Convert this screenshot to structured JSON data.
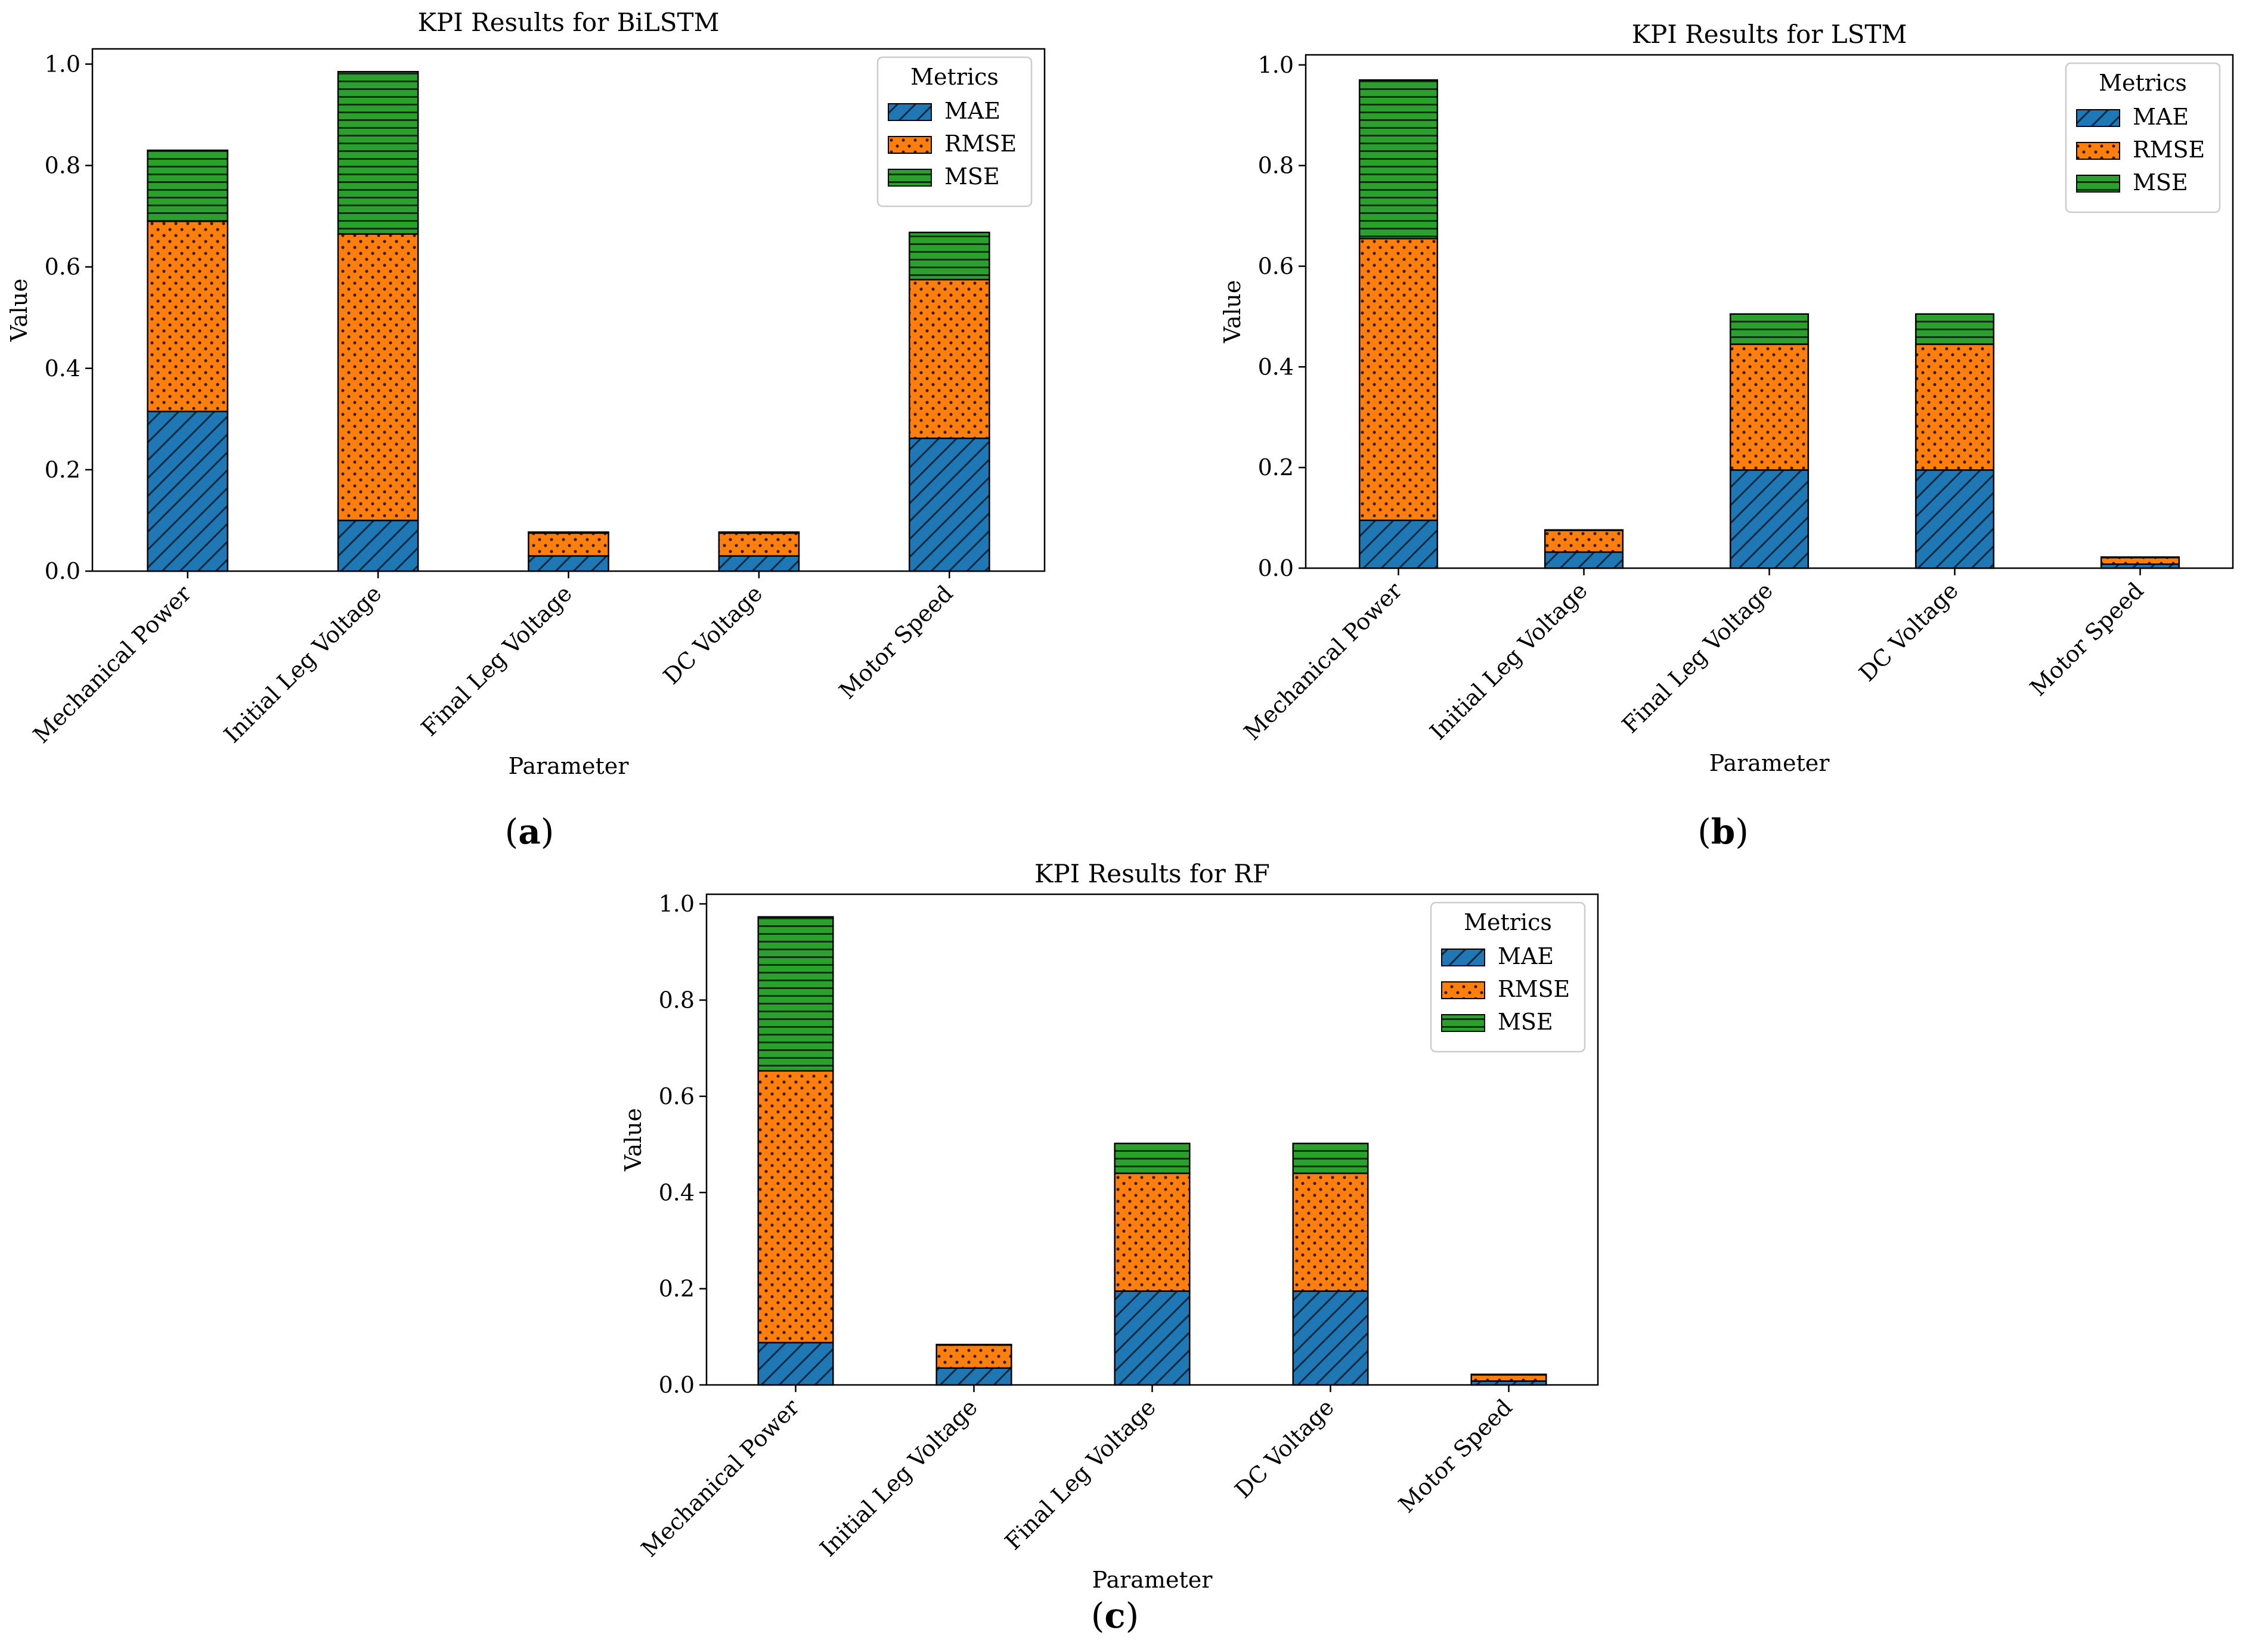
{
  "colors": {
    "MAE": "#1f77b4",
    "RMSE": "#ff7f0e",
    "MSE": "#2ca02c",
    "MAE_hatch": "#0d2a44",
    "RMSE_hatch": "#3a1c02",
    "MSE_hatch": "#0b3310",
    "axis": "#000000"
  },
  "chart_data": [
    {
      "type": "bar",
      "stacked": true,
      "panel_label": "(a)",
      "title": "KPI Results for BiLSTM",
      "xlabel": "Parameter",
      "ylabel": "Value",
      "ylim": [
        0,
        1.03
      ],
      "yticks": [
        0.0,
        0.2,
        0.4,
        0.6,
        0.8,
        1.0
      ],
      "ytick_labels": [
        "0.0",
        "0.2",
        "0.4",
        "0.6",
        "0.8",
        "1.0"
      ],
      "categories": [
        "Mechanical Power",
        "Initial Leg Voltage",
        "Final Leg Voltage",
        "DC Voltage",
        "Motor Speed"
      ],
      "legend": {
        "title": "Metrics",
        "entries": [
          "MAE",
          "RMSE",
          "MSE"
        ],
        "placement": "top-right"
      },
      "series": [
        {
          "name": "MAE",
          "values": [
            0.315,
            0.1,
            0.03,
            0.03,
            0.262
          ]
        },
        {
          "name": "RMSE",
          "values": [
            0.375,
            0.565,
            0.045,
            0.045,
            0.313
          ]
        },
        {
          "name": "MSE",
          "values": [
            0.14,
            0.32,
            0.002,
            0.002,
            0.093
          ]
        }
      ]
    },
    {
      "type": "bar",
      "stacked": true,
      "panel_label": "(b)",
      "title": "KPI Results for LSTM",
      "xlabel": "Parameter",
      "ylabel": "Value",
      "ylim": [
        0,
        1.02
      ],
      "yticks": [
        0.0,
        0.2,
        0.4,
        0.6,
        0.8,
        1.0
      ],
      "ytick_labels": [
        "0.0",
        "0.2",
        "0.4",
        "0.6",
        "0.8",
        "1.0"
      ],
      "categories": [
        "Mechanical Power",
        "Initial Leg Voltage",
        "Final Leg Voltage",
        "DC Voltage",
        "Motor Speed"
      ],
      "legend": {
        "title": "Metrics",
        "entries": [
          "MAE",
          "RMSE",
          "MSE"
        ],
        "placement": "top-right"
      },
      "series": [
        {
          "name": "MAE",
          "values": [
            0.095,
            0.032,
            0.195,
            0.195,
            0.008
          ]
        },
        {
          "name": "RMSE",
          "values": [
            0.56,
            0.043,
            0.25,
            0.25,
            0.013
          ]
        },
        {
          "name": "MSE",
          "values": [
            0.315,
            0.001,
            0.06,
            0.06,
            0.001
          ]
        }
      ]
    },
    {
      "type": "bar",
      "stacked": true,
      "panel_label": "(c)",
      "title": "KPI Results for RF",
      "xlabel": "Parameter",
      "ylabel": "Value",
      "ylim": [
        0,
        1.02
      ],
      "yticks": [
        0.0,
        0.2,
        0.4,
        0.6,
        0.8,
        1.0
      ],
      "ytick_labels": [
        "0.0",
        "0.2",
        "0.4",
        "0.6",
        "0.8",
        "1.0"
      ],
      "categories": [
        "Mechanical Power",
        "Initial Leg Voltage",
        "Final Leg Voltage",
        "DC Voltage",
        "Motor Speed"
      ],
      "legend": {
        "title": "Metrics",
        "entries": [
          "MAE",
          "RMSE",
          "MSE"
        ],
        "placement": "top-right"
      },
      "series": [
        {
          "name": "MAE",
          "values": [
            0.088,
            0.035,
            0.195,
            0.195,
            0.008
          ]
        },
        {
          "name": "RMSE",
          "values": [
            0.565,
            0.048,
            0.245,
            0.245,
            0.013
          ]
        },
        {
          "name": "MSE",
          "values": [
            0.32,
            0.001,
            0.062,
            0.062,
            0.001
          ]
        }
      ]
    }
  ]
}
